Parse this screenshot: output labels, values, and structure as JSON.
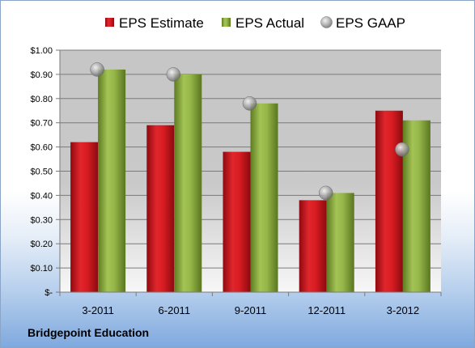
{
  "company_label": "Bridgepoint Education",
  "chart_data": {
    "type": "bar",
    "title": "",
    "xlabel": "",
    "ylabel": "",
    "categories": [
      "3-2011",
      "6-2011",
      "9-2011",
      "12-2011",
      "3-2012"
    ],
    "series": [
      {
        "name": "EPS Estimate",
        "type": "bar",
        "color": "#c8101a",
        "values": [
          0.62,
          0.69,
          0.58,
          0.38,
          0.75
        ]
      },
      {
        "name": "EPS Actual",
        "type": "bar",
        "color": "#8caf3c",
        "values": [
          0.92,
          0.9,
          0.78,
          0.41,
          0.71
        ]
      },
      {
        "name": "EPS GAAP",
        "type": "scatter",
        "color": "#a9a9a9",
        "values": [
          0.92,
          0.9,
          0.78,
          0.41,
          0.59
        ]
      }
    ],
    "ylim": [
      0,
      1.0
    ],
    "yticks": [
      0,
      0.1,
      0.2,
      0.3,
      0.4,
      0.5,
      0.6,
      0.7,
      0.8,
      0.9,
      1.0
    ],
    "ytick_labels": [
      "$-",
      "$0.10",
      "$0.20",
      "$0.30",
      "$0.40",
      "$0.50",
      "$0.60",
      "$0.70",
      "$0.80",
      "$0.90",
      "$1.00"
    ],
    "grid": true,
    "legend_position": "top"
  }
}
